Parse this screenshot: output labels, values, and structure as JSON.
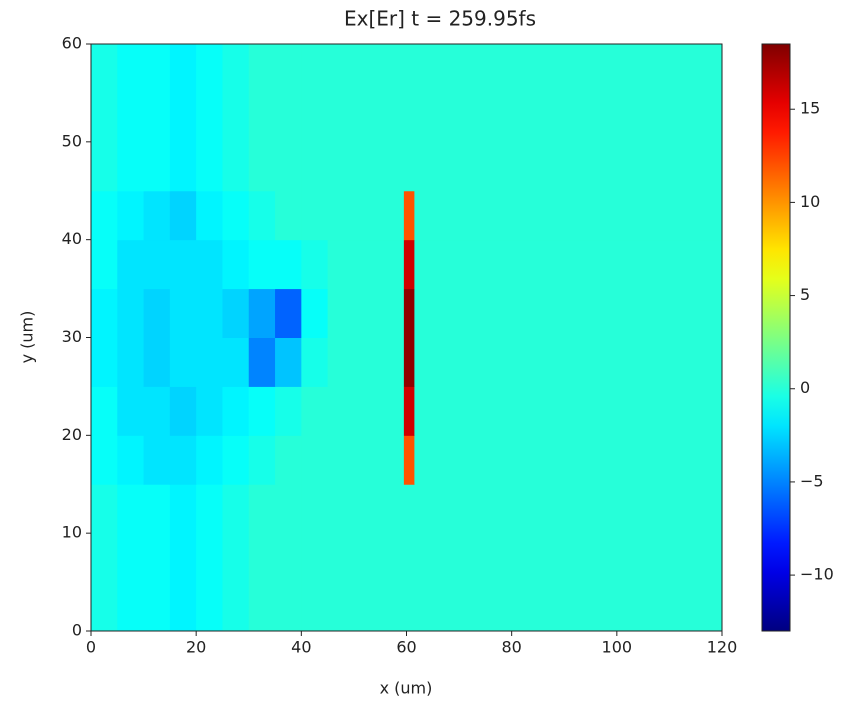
{
  "chart_data": {
    "type": "heatmap",
    "title": "Ex[Er] t = 259.95fs",
    "x_label": "x (um)",
    "y_label": "y (um)",
    "colormap": "jet",
    "xlim": [
      0,
      120
    ],
    "ylim": [
      0,
      60
    ],
    "xticks": [
      0,
      20,
      40,
      60,
      80,
      100,
      120
    ],
    "yticks": [
      0,
      10,
      20,
      30,
      40,
      50,
      60
    ],
    "x_edges": [
      0,
      5,
      10,
      15,
      20,
      25,
      30,
      35,
      40,
      45,
      59.5,
      61.5,
      120
    ],
    "y_edges": [
      0,
      15,
      20,
      25,
      30,
      35,
      40,
      45,
      60
    ],
    "z": [
      [
        -0.5,
        -1,
        -1,
        -1.5,
        -1,
        -0.5,
        0,
        0,
        0,
        0,
        0,
        0
      ],
      [
        -1,
        -1.5,
        -2,
        -2,
        -1.5,
        -1,
        -0.5,
        0,
        0,
        0,
        12,
        0
      ],
      [
        -1,
        -2,
        -2,
        -2.5,
        -2,
        -1.5,
        -1,
        -0.5,
        0,
        0,
        16,
        0
      ],
      [
        -1.5,
        -2,
        -2.5,
        -2,
        -2,
        -2,
        -5,
        -3,
        -0.5,
        0,
        18,
        0
      ],
      [
        -1.5,
        -2,
        -2.5,
        -2,
        -2,
        -2.5,
        -4,
        -6,
        -1,
        0,
        18,
        0
      ],
      [
        -1,
        -2,
        -2,
        -2,
        -2,
        -1.5,
        -1,
        -1,
        -0.5,
        0,
        16,
        0
      ],
      [
        -1,
        -1.5,
        -2,
        -2.5,
        -1.5,
        -1,
        -0.5,
        0,
        0,
        0,
        12,
        0
      ],
      [
        -0.5,
        -1,
        -1,
        -1.5,
        -1,
        -0.5,
        0,
        0,
        0,
        0,
        0,
        0
      ]
    ],
    "zlim": [
      -13,
      18.5
    ],
    "colorbar_ticks": [
      {
        "value": -10,
        "label": "−10"
      },
      {
        "value": -5,
        "label": "−5"
      },
      0,
      5,
      10,
      15
    ]
  }
}
